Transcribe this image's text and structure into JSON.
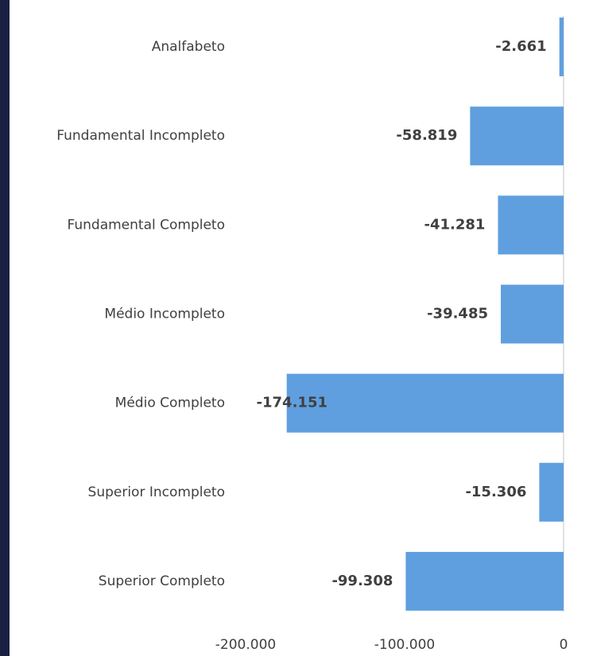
{
  "chart_data": {
    "type": "bar",
    "orientation": "horizontal",
    "categories": [
      "Analfabeto",
      "Fundamental Incompleto",
      "Fundamental Completo",
      "Médio Incompleto",
      "Médio Completo",
      "Superior Incompleto",
      "Superior Completo"
    ],
    "values": [
      -2661,
      -58819,
      -41281,
      -39485,
      -174151,
      -15306,
      -99308
    ],
    "value_labels": [
      "-2.661",
      "-58.819",
      "-41.281",
      "-39.485",
      "-174.151",
      "-15.306",
      "-99.308"
    ],
    "color": "#5f9fdf",
    "xlim": [
      -200000,
      0
    ],
    "xticks": [
      {
        "value": -200000,
        "label": "-200.000"
      },
      {
        "value": -100000,
        "label": "-100.000"
      },
      0
    ],
    "grid": false
  }
}
